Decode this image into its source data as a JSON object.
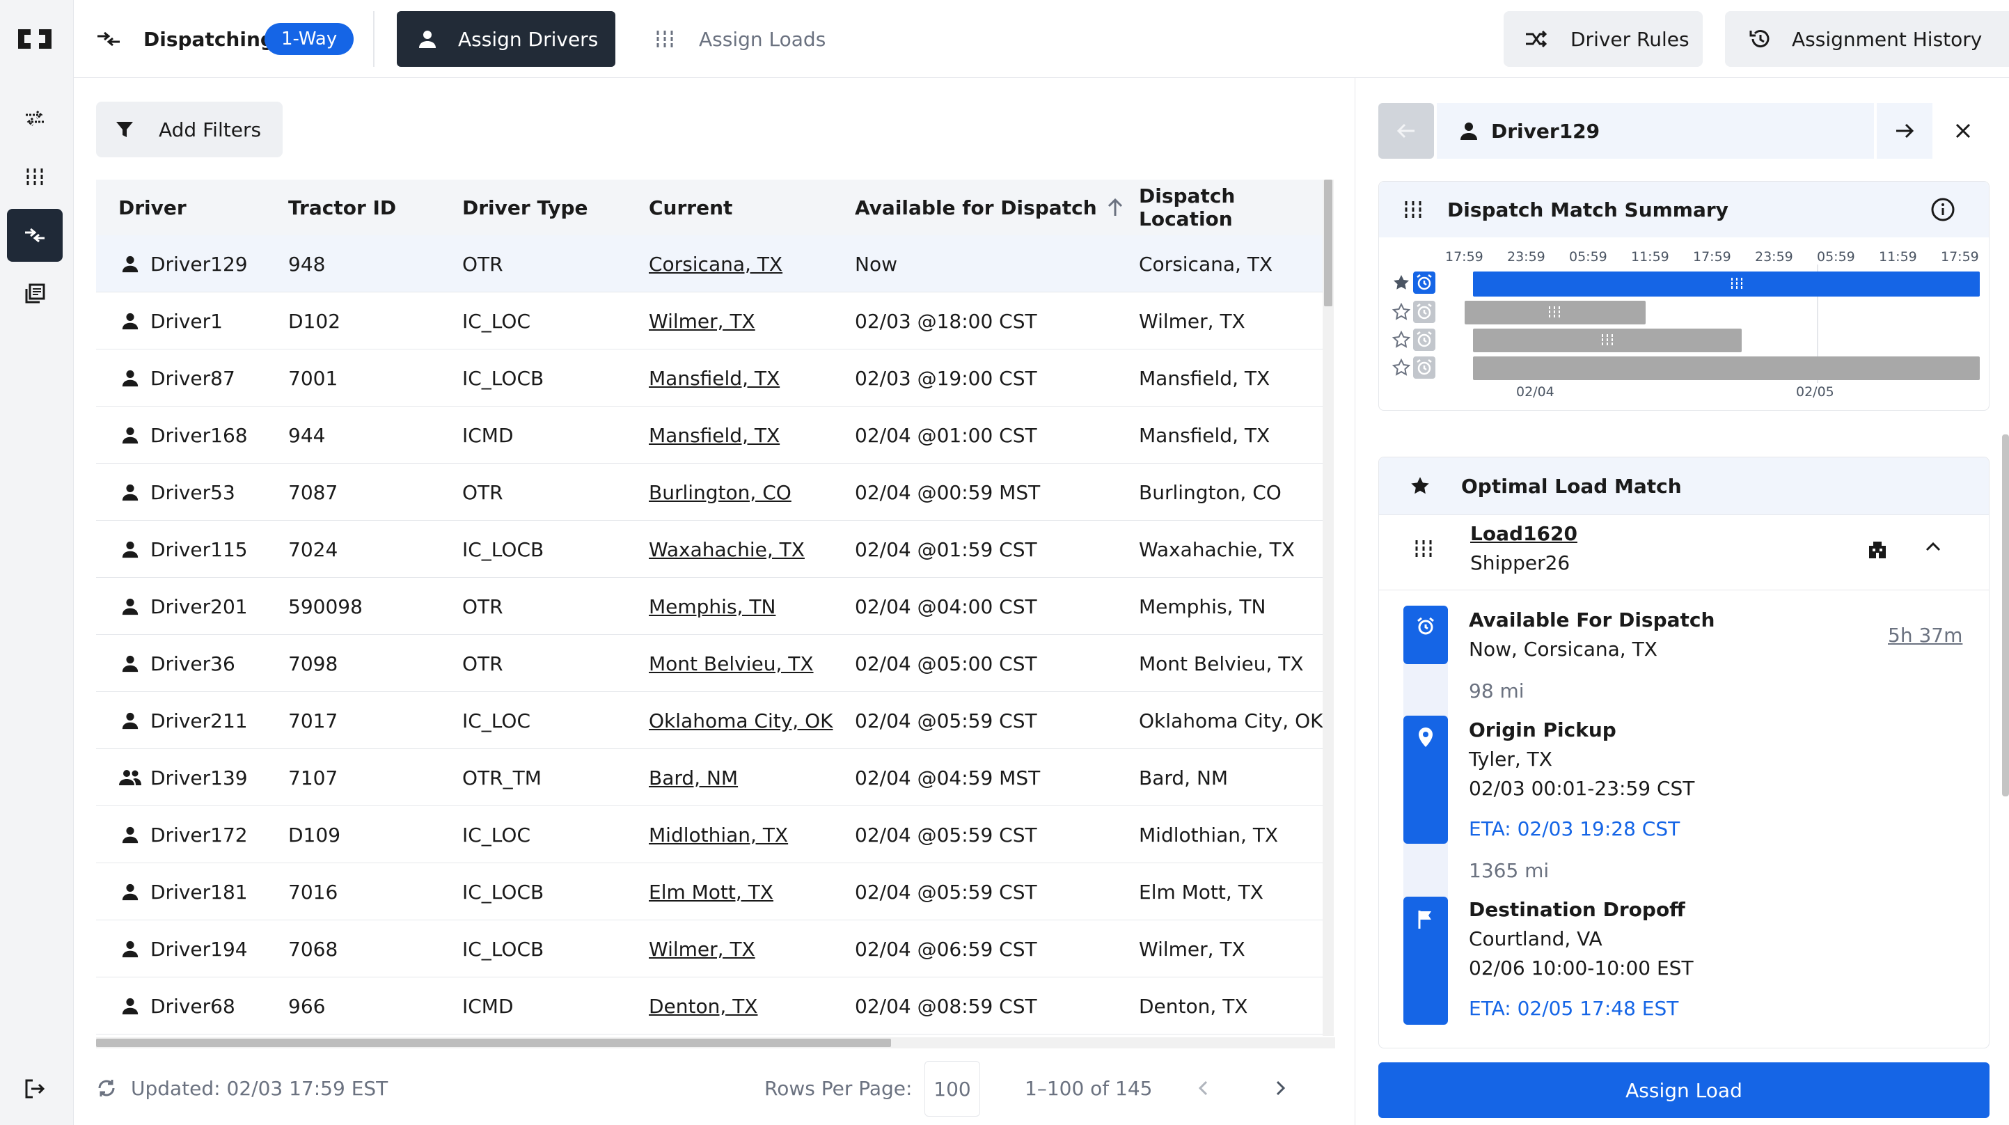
{
  "header": {
    "app_label": "Dispatching",
    "mode_badge": "1-Way",
    "tab_assign_drivers": "Assign Drivers",
    "tab_assign_loads": "Assign Loads",
    "driver_rules": "Driver Rules",
    "assignment_history": "Assignment History"
  },
  "filters": {
    "add_filters": "Add Filters"
  },
  "table": {
    "columns": [
      "Driver",
      "Tractor ID",
      "Driver Type",
      "Current",
      "Available for Dispatch",
      "Dispatch Location"
    ],
    "sort_column": "Available for Dispatch",
    "rows": [
      {
        "driver": "Driver129",
        "icon": "person-icon",
        "tractor": "948",
        "type": "OTR",
        "current": "Corsicana, TX",
        "available": "Now",
        "location": "Corsicana, TX"
      },
      {
        "driver": "Driver1",
        "icon": "person-icon",
        "tractor": "D102",
        "type": "IC_LOC",
        "current": "Wilmer, TX",
        "available": "02/03 @18:00 CST",
        "location": "Wilmer, TX"
      },
      {
        "driver": "Driver87",
        "icon": "person-icon",
        "tractor": "7001",
        "type": "IC_LOCB",
        "current": "Mansfield, TX",
        "available": "02/03 @19:00 CST",
        "location": "Mansfield, TX"
      },
      {
        "driver": "Driver168",
        "icon": "person-icon",
        "tractor": "944",
        "type": "ICMD",
        "current": "Mansfield, TX",
        "available": "02/04 @01:00 CST",
        "location": "Mansfield, TX"
      },
      {
        "driver": "Driver53",
        "icon": "person-icon",
        "tractor": "7087",
        "type": "OTR",
        "current": "Burlington, CO",
        "available": "02/04 @00:59 MST",
        "location": "Burlington, CO"
      },
      {
        "driver": "Driver115",
        "icon": "person-icon",
        "tractor": "7024",
        "type": "IC_LOCB",
        "current": "Waxahachie, TX",
        "available": "02/04 @01:59 CST",
        "location": "Waxahachie, TX"
      },
      {
        "driver": "Driver201",
        "icon": "person-icon",
        "tractor": "590098",
        "type": "OTR",
        "current": "Memphis, TN",
        "available": "02/04 @04:00 CST",
        "location": "Memphis, TN"
      },
      {
        "driver": "Driver36",
        "icon": "person-icon",
        "tractor": "7098",
        "type": "OTR",
        "current": "Mont Belvieu, TX",
        "available": "02/04 @05:00 CST",
        "location": "Mont Belvieu, TX"
      },
      {
        "driver": "Driver211",
        "icon": "person-icon",
        "tractor": "7017",
        "type": "IC_LOC",
        "current": "Oklahoma City, OK",
        "available": "02/04 @05:59 CST",
        "location": "Oklahoma City, OK"
      },
      {
        "driver": "Driver139",
        "icon": "team-icon",
        "tractor": "7107",
        "type": "OTR_TM",
        "current": "Bard, NM",
        "available": "02/04 @04:59 MST",
        "location": "Bard, NM"
      },
      {
        "driver": "Driver172",
        "icon": "person-icon",
        "tractor": "D109",
        "type": "IC_LOC",
        "current": "Midlothian, TX",
        "available": "02/04 @05:59 CST",
        "location": "Midlothian, TX"
      },
      {
        "driver": "Driver181",
        "icon": "person-icon",
        "tractor": "7016",
        "type": "IC_LOCB",
        "current": "Elm Mott, TX",
        "available": "02/04 @05:59 CST",
        "location": "Elm Mott, TX"
      },
      {
        "driver": "Driver194",
        "icon": "person-icon",
        "tractor": "7068",
        "type": "IC_LOCB",
        "current": "Wilmer, TX",
        "available": "02/04 @06:59 CST",
        "location": "Wilmer, TX"
      },
      {
        "driver": "Driver68",
        "icon": "person-icon",
        "tractor": "966",
        "type": "ICMD",
        "current": "Denton, TX",
        "available": "02/04 @08:59 CST",
        "location": "Denton, TX"
      }
    ]
  },
  "footer": {
    "updated": "Updated: 02/03 17:59 EST",
    "rows_per_page_label": "Rows Per Page:",
    "rows_per_page": "100",
    "range": "1–100 of 145"
  },
  "detail": {
    "driver_name": "Driver129",
    "summary_title": "Dispatch Match Summary",
    "timeline_hours": [
      "17:59",
      "23:59",
      "05:59",
      "11:59",
      "17:59",
      "23:59",
      "05:59",
      "11:59",
      "17:59"
    ],
    "timeline_dates": [
      "02/04",
      "02/05"
    ],
    "optimal_title": "Optimal Load Match",
    "load_id": "Load1620",
    "shipper": "Shipper26",
    "steps": {
      "available_title": "Available For Dispatch",
      "available_text": "Now, Corsicana, TX",
      "available_duration": "5h 37m",
      "dist1": "98 mi",
      "pickup_title": "Origin Pickup",
      "pickup_city": "Tyler, TX",
      "pickup_window": "02/03 00:01-23:59 CST",
      "pickup_eta": "ETA: 02/03 19:28 CST",
      "dist2": "1365 mi",
      "dropoff_title": "Destination Dropoff",
      "dropoff_city": "Courtland, VA",
      "dropoff_window": "02/06 10:00-10:00 EST",
      "dropoff_eta": "ETA: 02/05 17:48 EST"
    },
    "assign_button": "Assign Load"
  },
  "colors": {
    "accent": "#1565e6",
    "dark": "#222b37"
  }
}
